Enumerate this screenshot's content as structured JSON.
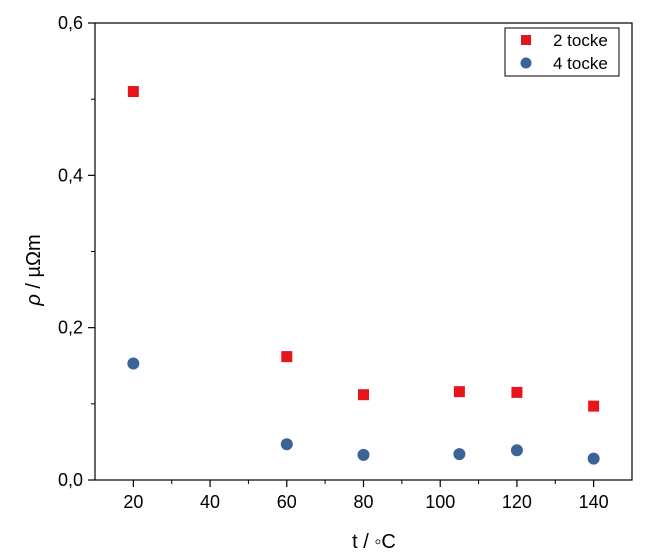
{
  "chart_data": {
    "type": "scatter",
    "title": "",
    "xlabel": "t / ◦C",
    "ylabel_symbol": "ρ",
    "ylabel_unit": " / µΩm",
    "xlim": [
      10,
      150
    ],
    "ylim": [
      0,
      0.6
    ],
    "x_ticks": [
      20,
      40,
      60,
      80,
      100,
      120,
      140
    ],
    "x_tick_labels": [
      "20",
      "40",
      "60",
      "80",
      "100",
      "120",
      "140"
    ],
    "y_ticks": [
      0,
      0.2,
      0.4,
      0.6
    ],
    "y_tick_labels": [
      "0,0",
      "0,2",
      "0,4",
      "0,6"
    ],
    "grid": false,
    "legend_position": "top-right",
    "series": [
      {
        "name": "2 tocke",
        "marker": "square",
        "color": "#e8141c",
        "points": [
          {
            "x": 20,
            "y": 0.51
          },
          {
            "x": 60,
            "y": 0.162
          },
          {
            "x": 80,
            "y": 0.112
          },
          {
            "x": 105,
            "y": 0.116
          },
          {
            "x": 120,
            "y": 0.115
          },
          {
            "x": 140,
            "y": 0.097
          }
        ]
      },
      {
        "name": "4 tocke",
        "marker": "circle",
        "color": "#3b6398",
        "points": [
          {
            "x": 20,
            "y": 0.153
          },
          {
            "x": 60,
            "y": 0.047
          },
          {
            "x": 80,
            "y": 0.033
          },
          {
            "x": 105,
            "y": 0.034
          },
          {
            "x": 120,
            "y": 0.039
          },
          {
            "x": 140,
            "y": 0.028
          }
        ]
      }
    ]
  }
}
